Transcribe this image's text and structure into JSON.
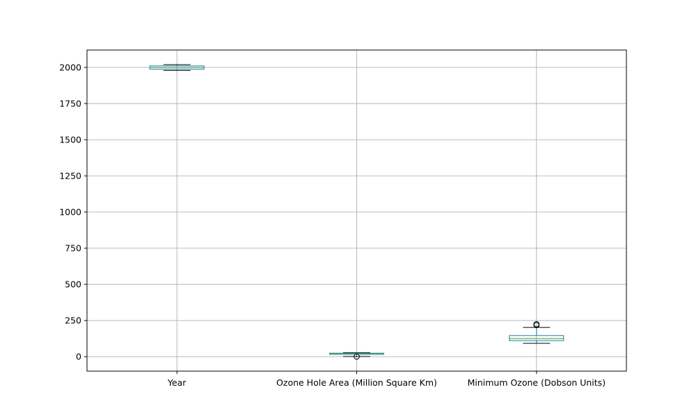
{
  "chart_data": {
    "type": "box",
    "title": "",
    "xlabel": "",
    "ylabel": "",
    "ylim": [
      -100,
      2120
    ],
    "yticks": [
      0,
      250,
      500,
      750,
      1000,
      1250,
      1500,
      1750,
      2000
    ],
    "ytick_labels": [
      "0",
      "250",
      "500",
      "750",
      "1000",
      "1250",
      "1500",
      "1750",
      "2000"
    ],
    "grid": true,
    "categories": [
      "Year",
      "Ozone Hole Area (Million Square Km)",
      "Minimum Ozone (Dobson Units)"
    ],
    "boxes": [
      {
        "label": "Year",
        "whisker_low": 1979,
        "q1": 1988,
        "median": 1999,
        "q3": 2010,
        "whisker_high": 2019,
        "outliers": []
      },
      {
        "label": "Ozone Hole Area (Million Square Km)",
        "whisker_low": 1,
        "q1": 16,
        "median": 22,
        "q3": 24,
        "whisker_high": 28,
        "outliers": [
          0.1
        ]
      },
      {
        "label": "Minimum Ozone (Dobson Units)",
        "whisker_low": 92,
        "q1": 111,
        "median": 125,
        "q3": 146,
        "whisker_high": 202,
        "outliers": [
          218,
          225
        ]
      }
    ],
    "colors": {
      "box": "#1f77b4",
      "median": "#2ca02c",
      "whisker": "#000000",
      "grid": "#b0b0b0",
      "axis": "#000000"
    }
  }
}
